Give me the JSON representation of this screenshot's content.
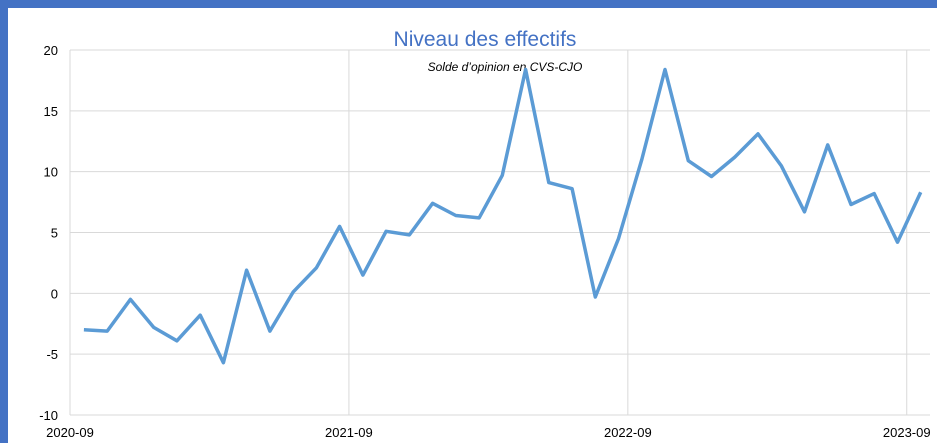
{
  "chart_data": {
    "type": "line",
    "title": "Niveau des effectifs",
    "subtitle": "Solde d’opinion en CVS-CJO",
    "x": [
      "2020-09",
      "2020-10",
      "2020-11",
      "2020-12",
      "2021-01",
      "2021-02",
      "2021-03",
      "2021-04",
      "2021-05",
      "2021-06",
      "2021-07",
      "2021-08",
      "2021-09",
      "2021-10",
      "2021-11",
      "2021-12",
      "2022-01",
      "2022-02",
      "2022-03",
      "2022-04",
      "2022-05",
      "2022-06",
      "2022-07",
      "2022-08",
      "2022-09",
      "2022-10",
      "2022-11",
      "2022-12",
      "2023-01",
      "2023-02",
      "2023-03",
      "2023-04",
      "2023-05",
      "2023-06",
      "2023-07",
      "2023-08",
      "2023-09"
    ],
    "series": [
      {
        "name": "Niveau des effectifs",
        "color": "#5b9bd5",
        "values": [
          -3.0,
          -3.1,
          -0.5,
          -2.8,
          -3.9,
          -1.8,
          -5.7,
          1.9,
          -3.1,
          0.1,
          2.1,
          5.5,
          1.5,
          5.1,
          4.8,
          7.4,
          6.4,
          6.2,
          9.7,
          18.4,
          9.1,
          8.6,
          -0.3,
          4.5,
          11.0,
          18.4,
          10.9,
          9.6,
          11.2,
          13.1,
          10.5,
          6.7,
          12.2,
          7.3,
          8.2,
          4.2,
          8.3
        ]
      }
    ],
    "xlim": [
      "2020-09",
      "2023-10"
    ],
    "xticks": [
      "2020-09",
      "2021-09",
      "2022-09",
      "2023-09"
    ],
    "ylim": [
      -10,
      20
    ],
    "yticks": [
      -10,
      -5,
      0,
      5,
      10,
      15,
      20
    ],
    "grid": true
  }
}
